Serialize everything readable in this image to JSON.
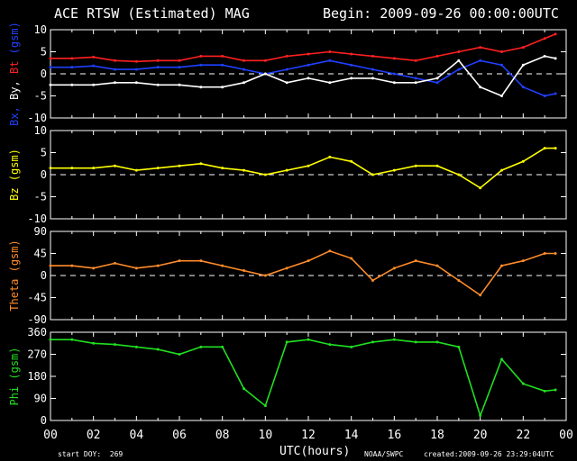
{
  "header": {
    "title": "ACE RTSW (Estimated) MAG",
    "begin": "Begin: 2009-09-26 00:00:00UTC"
  },
  "footer": {
    "start_doy": "start DOY:  269",
    "xlabel": "UTC(hours)",
    "source": "NOAA/SWPC",
    "created": "created:2009-09-26 23:29:04UTC"
  },
  "colors": {
    "bt": "#ff2020",
    "bx": "#2040ff",
    "by": "#ffffff",
    "bz": "#ffff00",
    "theta": "#ff8c2a",
    "phi": "#20e020",
    "axes": "#ffffff"
  },
  "x_ticks": [
    "00",
    "02",
    "04",
    "06",
    "08",
    "10",
    "12",
    "14",
    "16",
    "18",
    "20",
    "22",
    "00"
  ],
  "chart_data": [
    {
      "type": "line",
      "ylabel": [
        {
          "text": "Bx,",
          "color": "#2040ff"
        },
        {
          "text": " By,",
          "color": "#ffffff"
        },
        {
          "text": " Bt",
          "color": "#ff2020"
        },
        {
          "text": "  (gsm)",
          "color": "#2040ff"
        }
      ],
      "ylim": [
        -10,
        10
      ],
      "yticks": [
        "10",
        "5",
        "0",
        "-5",
        "-10"
      ],
      "ytick_values": [
        10,
        5,
        0,
        -5,
        -10
      ],
      "zero_line": true,
      "x": [
        0,
        1,
        2,
        3,
        4,
        5,
        6,
        7,
        8,
        9,
        10,
        11,
        12,
        13,
        14,
        15,
        16,
        17,
        18,
        19,
        20,
        21,
        22,
        23,
        23.5
      ],
      "series": [
        {
          "color": "#ff2020",
          "values": [
            3.5,
            3.5,
            3.8,
            3,
            2.8,
            3,
            3,
            4,
            4,
            3,
            3,
            4,
            4.5,
            5,
            4.5,
            4,
            3.5,
            3,
            4,
            5,
            6,
            5,
            6,
            8,
            9
          ]
        },
        {
          "color": "#2040ff",
          "values": [
            1.5,
            1.5,
            1.8,
            1,
            1,
            1.5,
            1.5,
            2,
            2,
            1,
            0,
            1,
            2,
            3,
            2,
            1,
            0,
            -1,
            -2,
            1,
            3,
            2,
            -3,
            -5,
            -4.5
          ]
        },
        {
          "color": "#ffffff",
          "values": [
            -2.5,
            -2.5,
            -2.5,
            -2,
            -2,
            -2.5,
            -2.5,
            -3,
            -3,
            -2,
            0,
            -2,
            -1,
            -2,
            -1,
            -1,
            -2,
            -2,
            -1,
            3,
            -3,
            -5,
            2,
            4,
            3.5
          ]
        }
      ]
    },
    {
      "type": "line",
      "ylabel": [
        {
          "text": "Bz  (gsm)",
          "color": "#ffff00"
        }
      ],
      "ylim": [
        -10,
        10
      ],
      "yticks": [
        "10",
        "5",
        "0",
        "-5",
        "-10"
      ],
      "ytick_values": [
        10,
        5,
        0,
        -5,
        -10
      ],
      "zero_line": true,
      "x": [
        0,
        1,
        2,
        3,
        4,
        5,
        6,
        7,
        8,
        9,
        10,
        11,
        12,
        13,
        14,
        15,
        16,
        17,
        18,
        19,
        20,
        21,
        22,
        23,
        23.5
      ],
      "series": [
        {
          "color": "#ffff00",
          "values": [
            1.5,
            1.5,
            1.5,
            2,
            1,
            1.5,
            2,
            2.5,
            1.5,
            1,
            0,
            1,
            2,
            4,
            3,
            0,
            1,
            2,
            2,
            0,
            -3,
            1,
            3,
            6,
            6
          ]
        }
      ]
    },
    {
      "type": "line",
      "ylabel": [
        {
          "text": "Theta  (gsm)",
          "color": "#ff8c2a"
        }
      ],
      "ylim": [
        -90,
        90
      ],
      "yticks": [
        "90",
        "45",
        "0",
        "-45",
        "-90"
      ],
      "ytick_values": [
        90,
        45,
        0,
        -45,
        -90
      ],
      "zero_line": true,
      "x": [
        0,
        1,
        2,
        3,
        4,
        5,
        6,
        7,
        8,
        9,
        10,
        11,
        12,
        13,
        14,
        15,
        16,
        17,
        18,
        19,
        20,
        21,
        22,
        23,
        23.5
      ],
      "series": [
        {
          "color": "#ff8c2a",
          "values": [
            20,
            20,
            15,
            25,
            15,
            20,
            30,
            30,
            20,
            10,
            0,
            15,
            30,
            50,
            35,
            -10,
            15,
            30,
            20,
            -10,
            -40,
            20,
            30,
            45,
            45
          ]
        }
      ]
    },
    {
      "type": "line",
      "ylabel": [
        {
          "text": "Phi  (gsm)",
          "color": "#20e020"
        }
      ],
      "ylim": [
        0,
        360
      ],
      "yticks": [
        "360",
        "270",
        "180",
        "90",
        "0"
      ],
      "ytick_values": [
        360,
        270,
        180,
        90,
        0
      ],
      "zero_line": false,
      "x": [
        0,
        1,
        2,
        3,
        4,
        5,
        6,
        7,
        8,
        9,
        10,
        11,
        12,
        13,
        14,
        15,
        16,
        17,
        18,
        19,
        20,
        21,
        22,
        23,
        23.5
      ],
      "series": [
        {
          "color": "#20e020",
          "values": [
            330,
            330,
            315,
            310,
            300,
            290,
            270,
            300,
            300,
            130,
            60,
            320,
            330,
            310,
            300,
            320,
            330,
            320,
            320,
            300,
            20,
            250,
            150,
            120,
            125
          ]
        }
      ]
    }
  ]
}
